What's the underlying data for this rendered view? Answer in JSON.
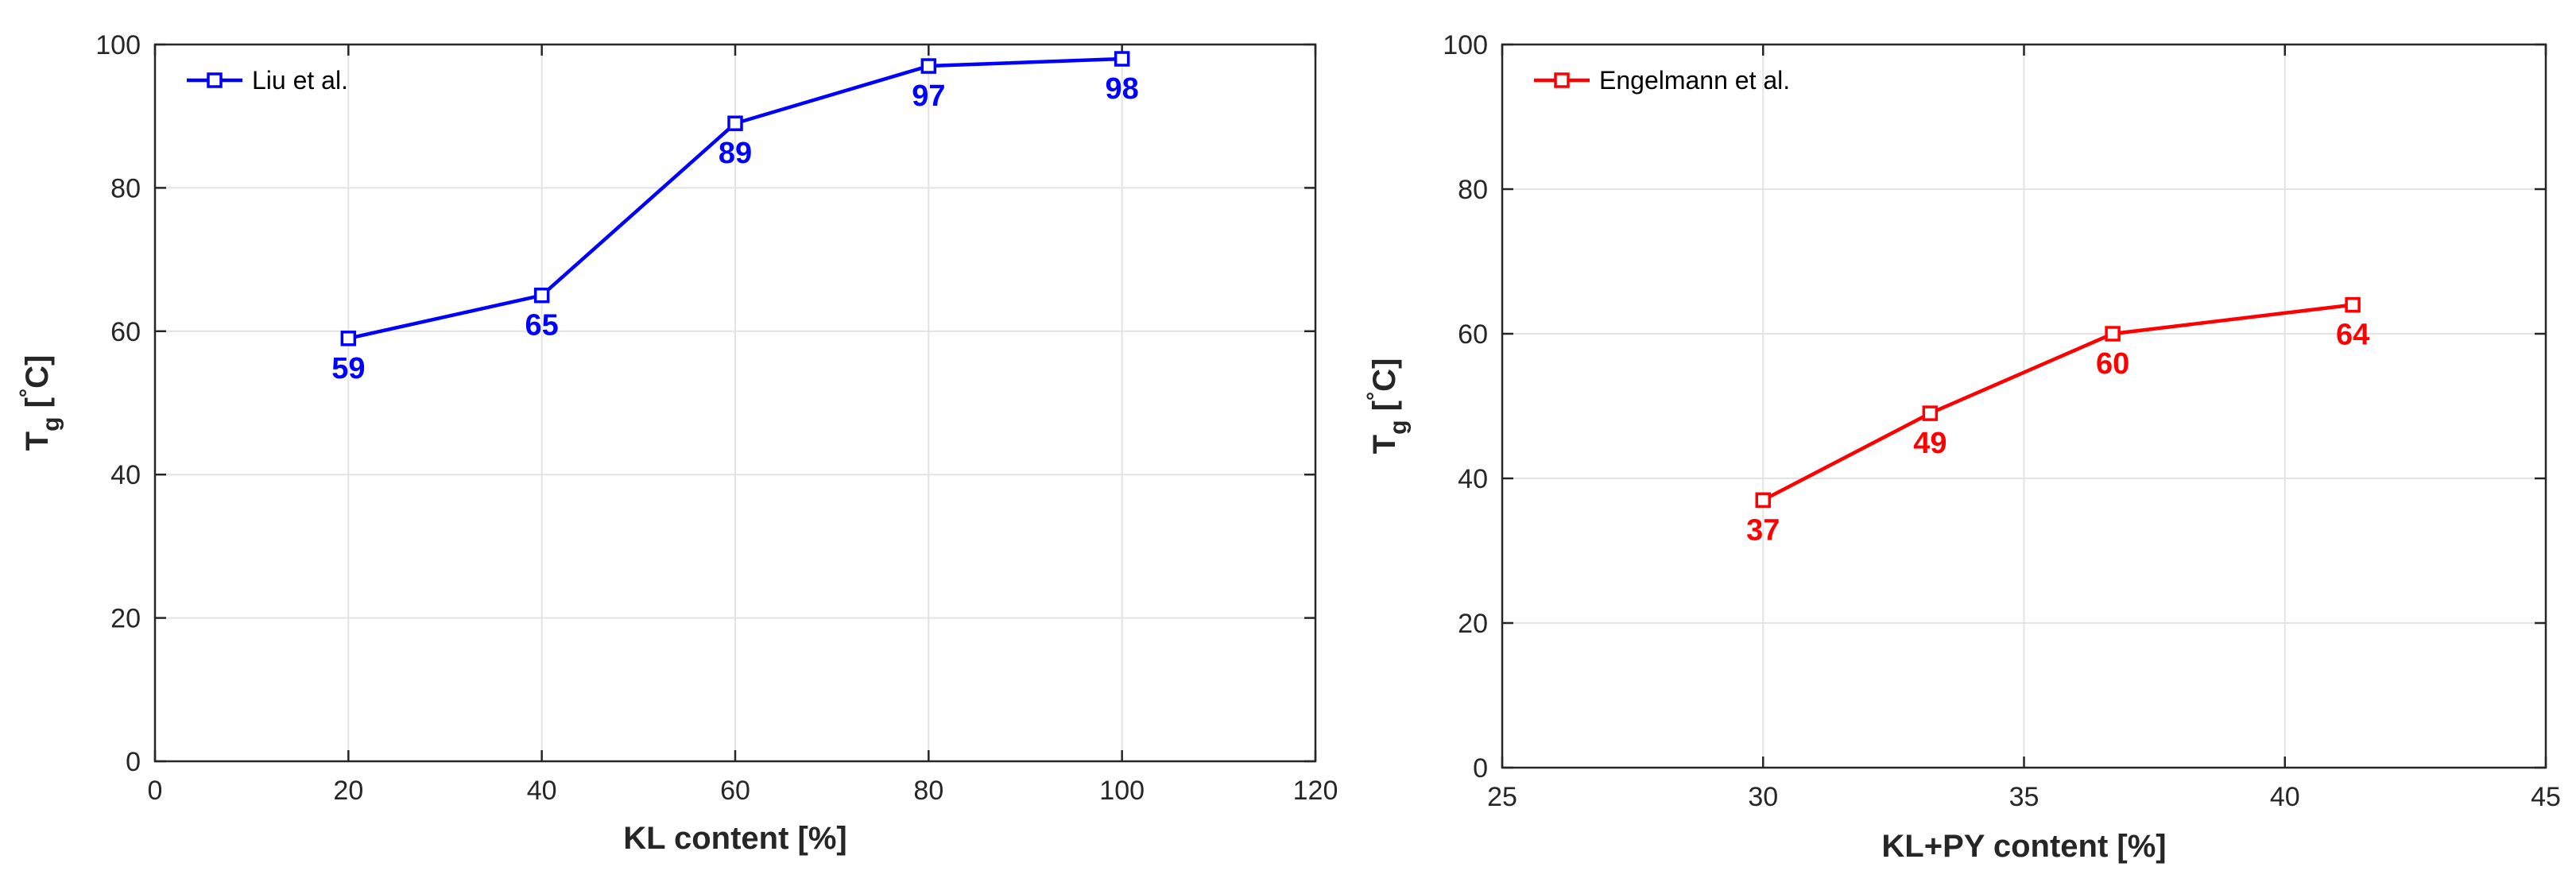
{
  "chart_data": [
    {
      "type": "line",
      "xlabel": "KL content [%]",
      "ylabel": "T_g [°C]",
      "ylabel_parts": {
        "main": "T",
        "sub": "g",
        "open": " [",
        "sup": "°",
        "unit": "C]"
      },
      "xlim": [
        0,
        120
      ],
      "ylim": [
        0,
        100
      ],
      "xticks": [
        0,
        20,
        40,
        60,
        80,
        100,
        120
      ],
      "yticks": [
        0,
        20,
        40,
        60,
        80,
        100
      ],
      "grid": true,
      "legend_position": "top-left",
      "series": [
        {
          "name": "Liu et al.",
          "color": "#0000ff",
          "marker": "square",
          "x": [
            20,
            40,
            60,
            80,
            100
          ],
          "y": [
            59,
            65,
            89,
            97,
            98
          ],
          "labels": [
            "59",
            "65",
            "89",
            "97",
            "98"
          ]
        }
      ]
    },
    {
      "type": "line",
      "xlabel": "KL+PY content [%]",
      "ylabel": "T_g [°C]",
      "ylabel_parts": {
        "main": "T",
        "sub": "g",
        "open": " [",
        "sup": "°",
        "unit": "C]"
      },
      "xlim": [
        25,
        45
      ],
      "ylim": [
        0,
        100
      ],
      "xticks": [
        25,
        30,
        35,
        40,
        45
      ],
      "yticks": [
        0,
        20,
        40,
        60,
        80,
        100
      ],
      "grid": true,
      "legend_position": "top-left",
      "series": [
        {
          "name": "Engelmann et al.",
          "color": "#ff0000",
          "marker": "square",
          "x": [
            30,
            33.2,
            36.7,
            41.3
          ],
          "y": [
            37,
            49,
            60,
            64
          ],
          "labels": [
            "37",
            "49",
            "60",
            "64"
          ]
        }
      ]
    }
  ]
}
